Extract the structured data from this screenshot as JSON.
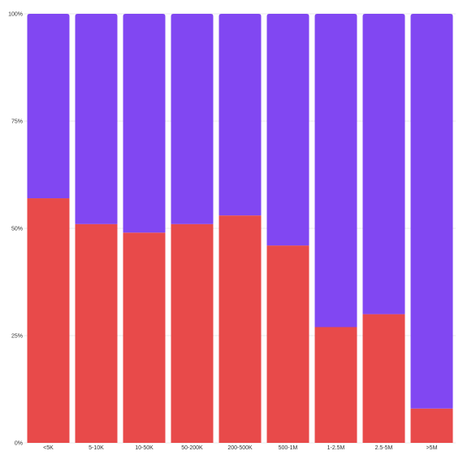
{
  "chart_data": {
    "type": "bar",
    "stacked": true,
    "normalized": true,
    "categories": [
      "<5K",
      "5-10K",
      "10-50K",
      "50-200K",
      "200-500K",
      "500-1M",
      "1-2.5M",
      "2.5-5M",
      ">5M"
    ],
    "series": [
      {
        "values": [
          57,
          51,
          49,
          51,
          53,
          46,
          27,
          30,
          8
        ],
        "color": "#e84a4a"
      },
      {
        "values": [
          43,
          49,
          51,
          49,
          47,
          54,
          73,
          70,
          92
        ],
        "color": "#8147f2"
      }
    ],
    "yticks": [
      "0%",
      "25%",
      "50%",
      "75%",
      "100%"
    ],
    "ylim": [
      0,
      100
    ],
    "grid": true,
    "title": "",
    "xlabel": "",
    "ylabel": ""
  }
}
